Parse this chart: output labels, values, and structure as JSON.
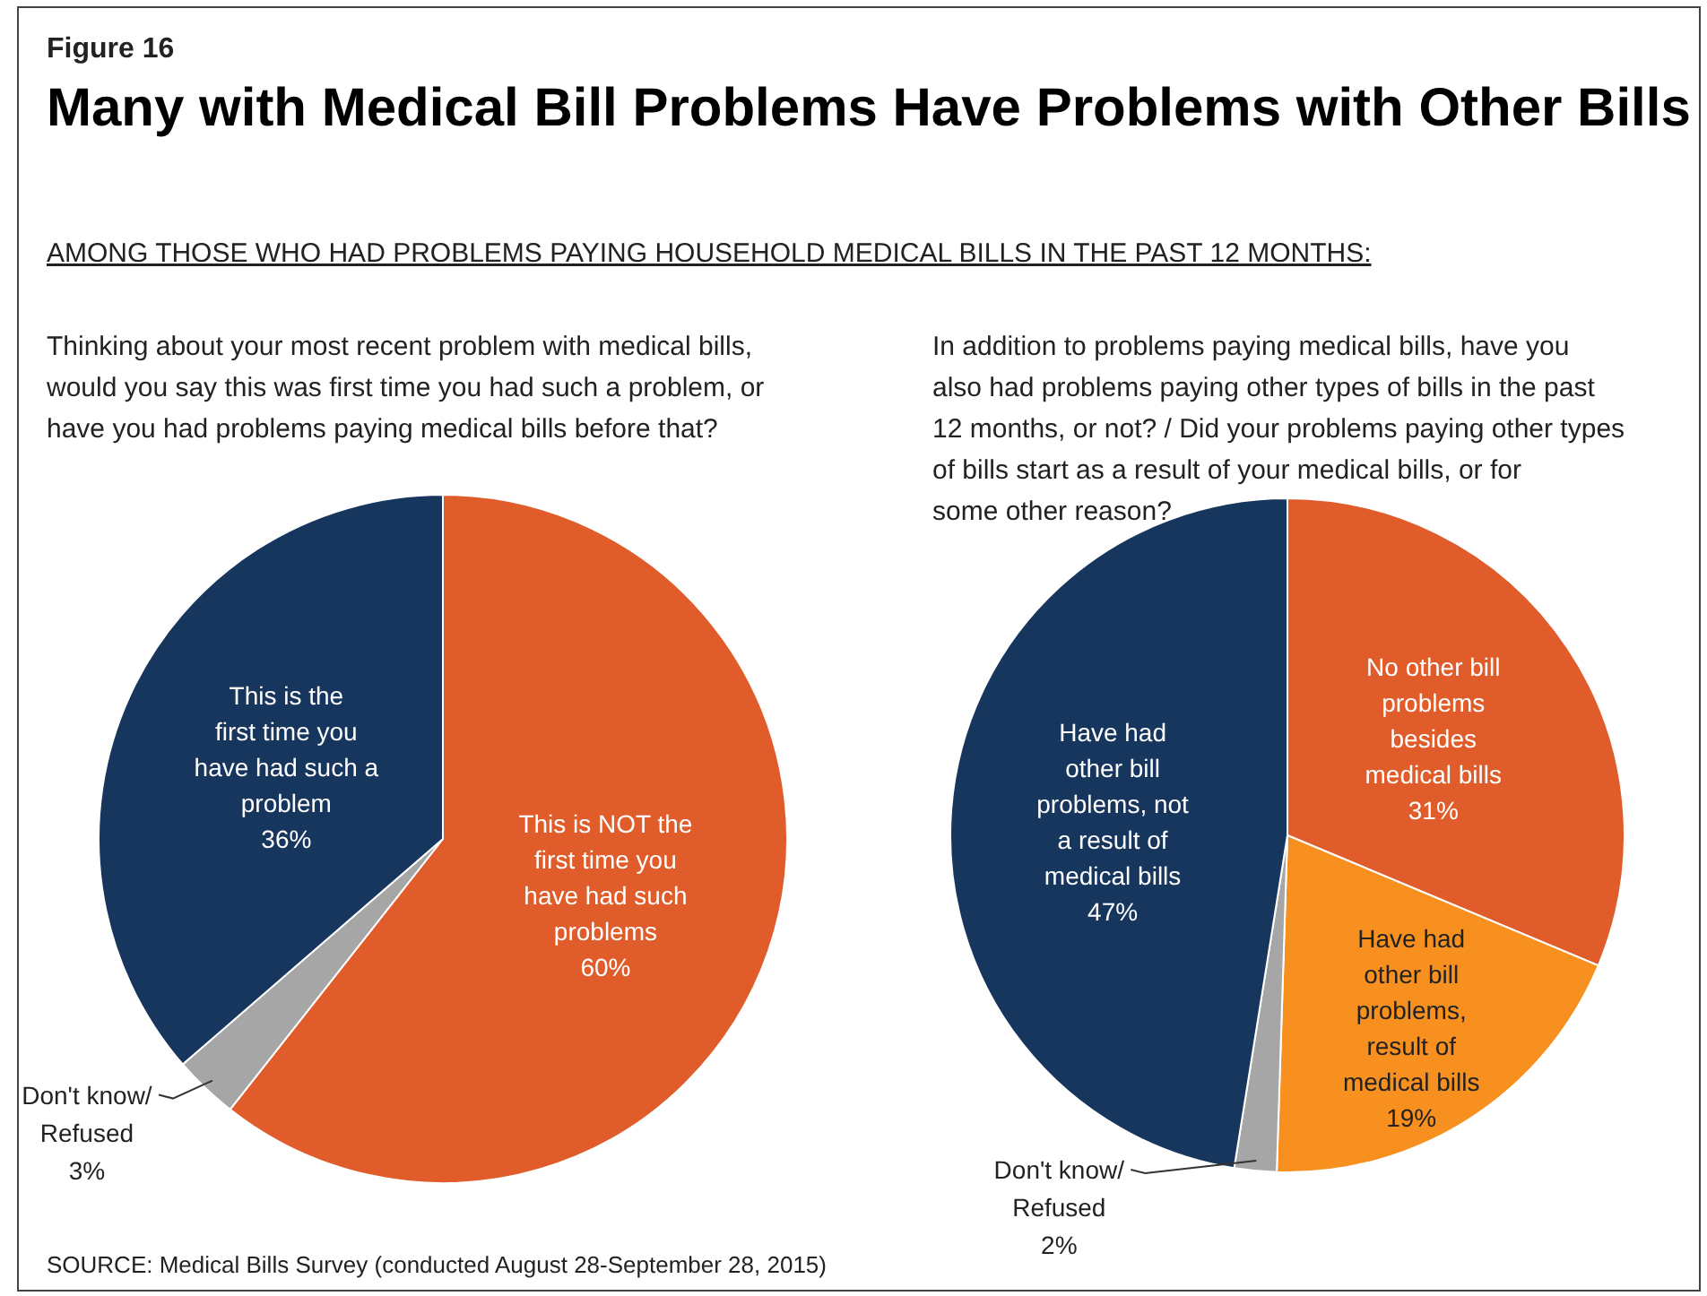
{
  "chart_data": [
    {
      "type": "pie",
      "title": "Many with Medical Bill Problems Have Problems with Other Bills",
      "subtitle": "Thinking about your most recent problem with medical bills, would you say this was first time you had such a problem, or have you had problems paying medical bills before that?",
      "annotations": [
        "Figure 16",
        "AMONG THOSE WHO HAD PROBLEMS PAYING HOUSEHOLD MEDICAL BILLS IN THE PAST 12 MONTHS:",
        "SOURCE: Medical Bills Survey (conducted August 28-September 28, 2015)"
      ],
      "categories": [
        "This is NOT the first time you have had such problems",
        "Don't know/ Refused",
        "This is the first time you have had such a problem"
      ],
      "values": [
        60,
        3,
        36
      ],
      "value_labels": [
        "60%",
        "3%",
        "36%"
      ],
      "colors": [
        "#e05c2a",
        "#a6a6a6",
        "#17365d"
      ]
    },
    {
      "type": "pie",
      "subtitle": "In addition to problems paying medical bills, have you also had problems paying other types of bills in the past 12 months, or not? / Did your problems paying other types of bills start as a result of your medical bills, or for some other reason?",
      "categories": [
        "No other bill problems besides medical bills",
        "Have had other bill problems, result of medical bills",
        "Don't know/ Refused",
        "Have had other bill problems, not a result of medical bills"
      ],
      "values": [
        31,
        19,
        2,
        47
      ],
      "value_labels": [
        "31%",
        "19%",
        "2%",
        "47%"
      ],
      "colors": [
        "#e05c2a",
        "#f7901e",
        "#a6a6a6",
        "#17365d"
      ]
    }
  ]
}
